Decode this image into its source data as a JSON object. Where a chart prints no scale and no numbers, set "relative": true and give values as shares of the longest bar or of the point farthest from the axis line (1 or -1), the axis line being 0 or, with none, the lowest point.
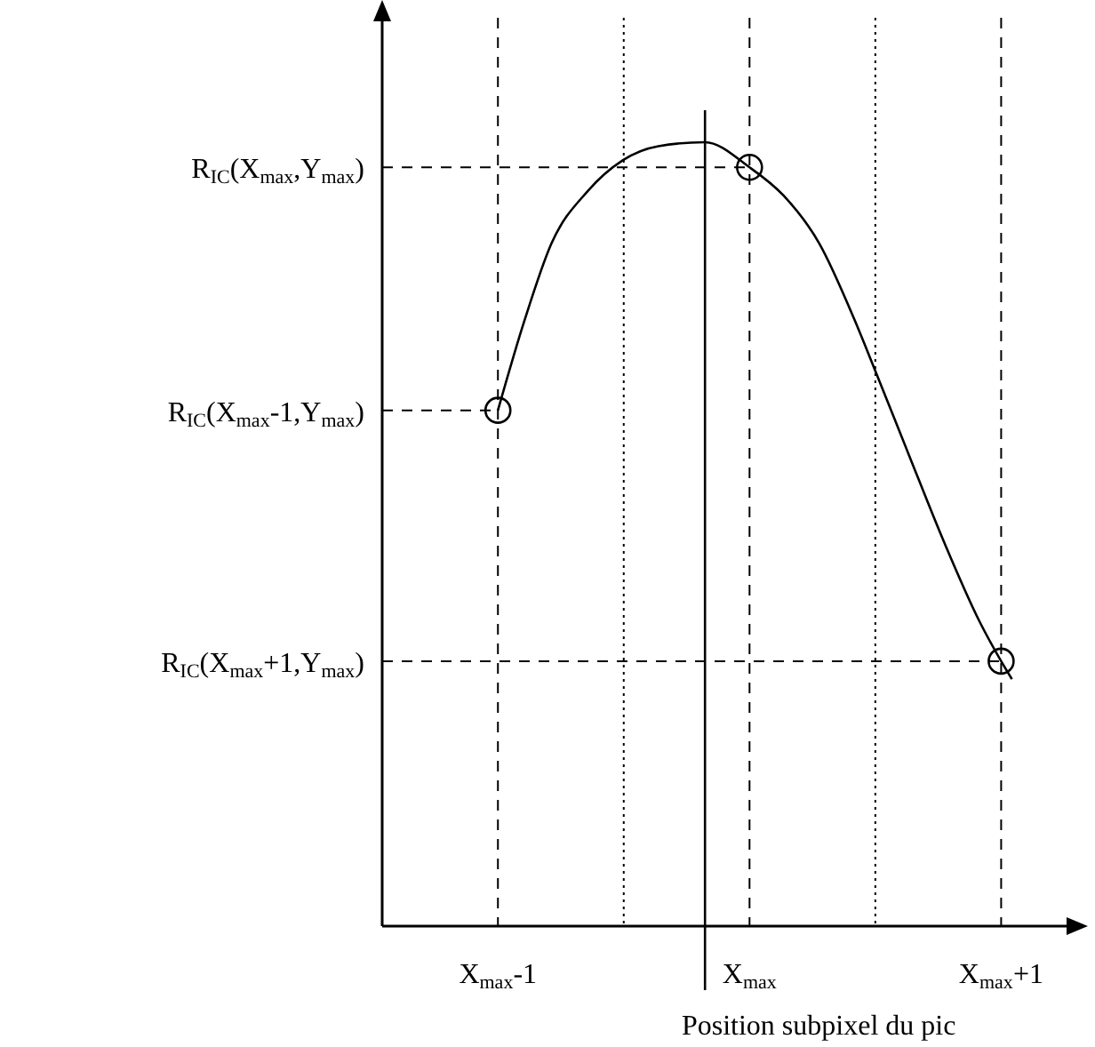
{
  "chart_data": {
    "type": "line",
    "relative": true,
    "xlim": [
      -1.46,
      1.26
    ],
    "xticks": [
      {
        "value": -1,
        "label": "X$_{max}$-1"
      },
      {
        "value": 0,
        "label": "X$_{max}$"
      },
      {
        "value": 1,
        "label": "X$_{max}$+1"
      }
    ],
    "grid": "x",
    "series": [
      {
        "marker": "none",
        "color": "#000000",
        "x": [
          -1,
          -0.894,
          -0.787,
          -0.645,
          -0.504,
          -0.362,
          -0.177,
          0,
          0.135,
          0.277,
          0.418,
          0.504,
          0.631,
          0.773,
          0.915,
          1,
          1.043
        ],
        "values": [
          0.658,
          0.773,
          0.871,
          0.937,
          0.977,
          0.995,
          1,
          0.968,
          0.932,
          0.871,
          0.773,
          0.705,
          0.603,
          0.49,
          0.388,
          0.338,
          0.315
        ]
      },
      {
        "type": "scatter",
        "marker": "circle",
        "color": "#000000",
        "x": [
          -1,
          0,
          1
        ],
        "values": [
          0.658,
          0.968,
          0.338
        ]
      }
    ],
    "ref_lines": [
      {
        "axis": "x",
        "value": -0.5,
        "line_style": "dotted"
      },
      {
        "axis": "x",
        "value": 0.5,
        "line_style": "dotted"
      },
      {
        "axis": "x",
        "value": -0.177,
        "line_style": "solid",
        "label": "Position subpixel du pic"
      },
      {
        "axis": "y",
        "value": 0.968,
        "line_style": "dashed",
        "label": "R$_{IC}$(X$_{max}$,Y$_{max}$)"
      },
      {
        "axis": "y",
        "value": 0.658,
        "line_style": "dashed",
        "label": "R$_{IC}$(X$_{max}$-1,Y$_{max}$)"
      },
      {
        "axis": "y",
        "value": 0.338,
        "line_style": "dashed",
        "label": "R$_{IC}$(X$_{max}$+1,Y$_{max}$)"
      }
    ]
  }
}
